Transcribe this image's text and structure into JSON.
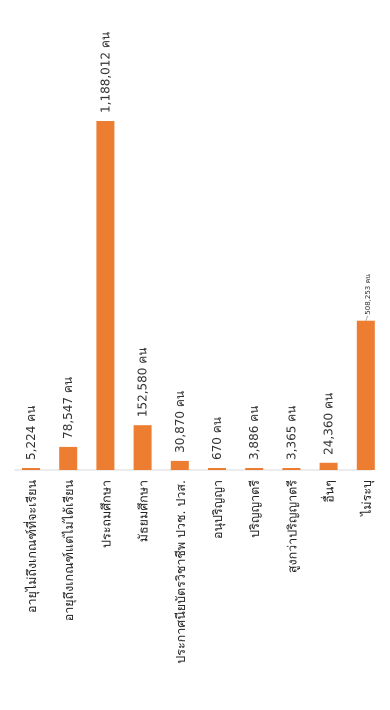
{
  "chart_data": {
    "type": "bar",
    "orientation": "vertical",
    "label_rotation_deg": -90,
    "unit": "คน",
    "bar_color": "#ED7D31",
    "categories": [
      "อายุไม่ถึงเกณฑ์ที่จะเรียน",
      "อายุถึงเกณฑ์แต่ไม่ได้เรียน",
      "ประถมศึกษา",
      "มัธยมศึกษา",
      "ประกาศนียบัตรวิชาชีพ ปวช. ปวส.",
      "อนุปริญญา",
      "ปริญญาตรี",
      "สูงกว่าปริญญาตรี",
      "อื่นๆ",
      "ไม่ระบุ"
    ],
    "values": [
      5224,
      78547,
      1188012,
      152580,
      30870,
      670,
      3886,
      3365,
      24360,
      508253
    ],
    "data_labels": [
      "5,224 คน",
      "78,547 คน",
      "1,188,012 คน",
      "152,580 คน",
      "30,870 คน",
      "670 คน",
      "3,886 คน",
      "3,365 คน",
      "24,360 คน",
      "508,253 คน"
    ],
    "grid": false,
    "legend": "none",
    "title": "",
    "xlabel": "",
    "ylabel": ""
  }
}
